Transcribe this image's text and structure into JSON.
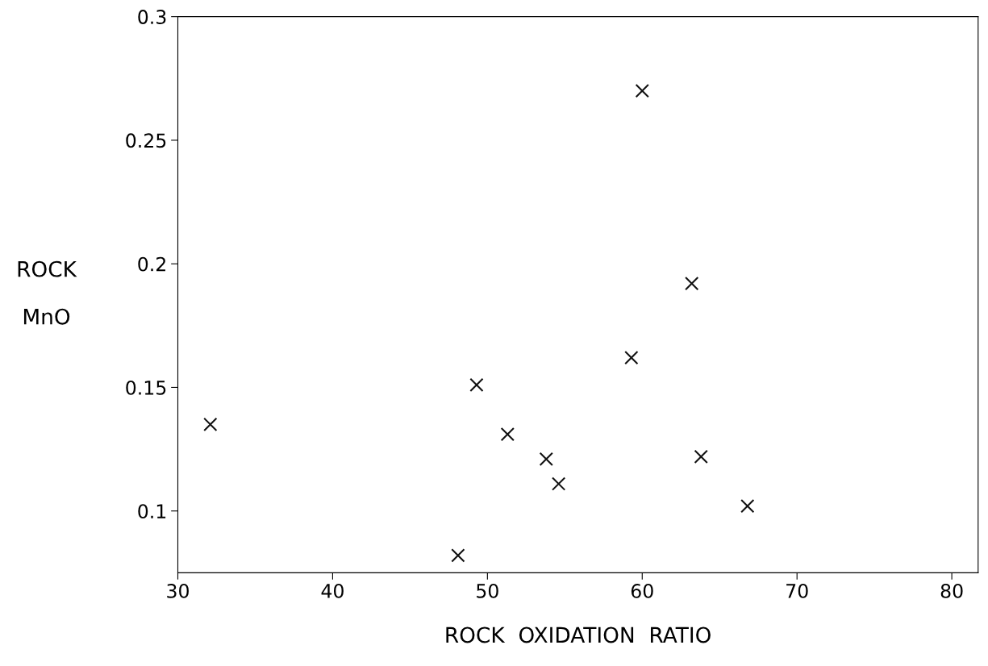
{
  "chart_data": {
    "type": "scatter",
    "xlabel": "ROCK  OXIDATION  RATIO",
    "ylabel": "ROCK\n\nMnO",
    "x": [
      32.1,
      48.1,
      49.3,
      51.3,
      53.8,
      54.6,
      59.3,
      60.0,
      63.2,
      63.8,
      66.8
    ],
    "values": [
      0.135,
      0.082,
      0.151,
      0.131,
      0.121,
      0.111,
      0.162,
      0.27,
      0.192,
      0.122,
      0.102
    ],
    "color": "#111111",
    "marker": "cross",
    "grid": false,
    "xlim": [
      30,
      81.7
    ],
    "xticks": [
      30,
      40,
      50,
      60,
      70,
      80
    ],
    "ylim": [
      0.075,
      0.3
    ],
    "yticks": [
      0.1,
      0.15,
      0.2,
      0.25,
      0.3
    ]
  }
}
